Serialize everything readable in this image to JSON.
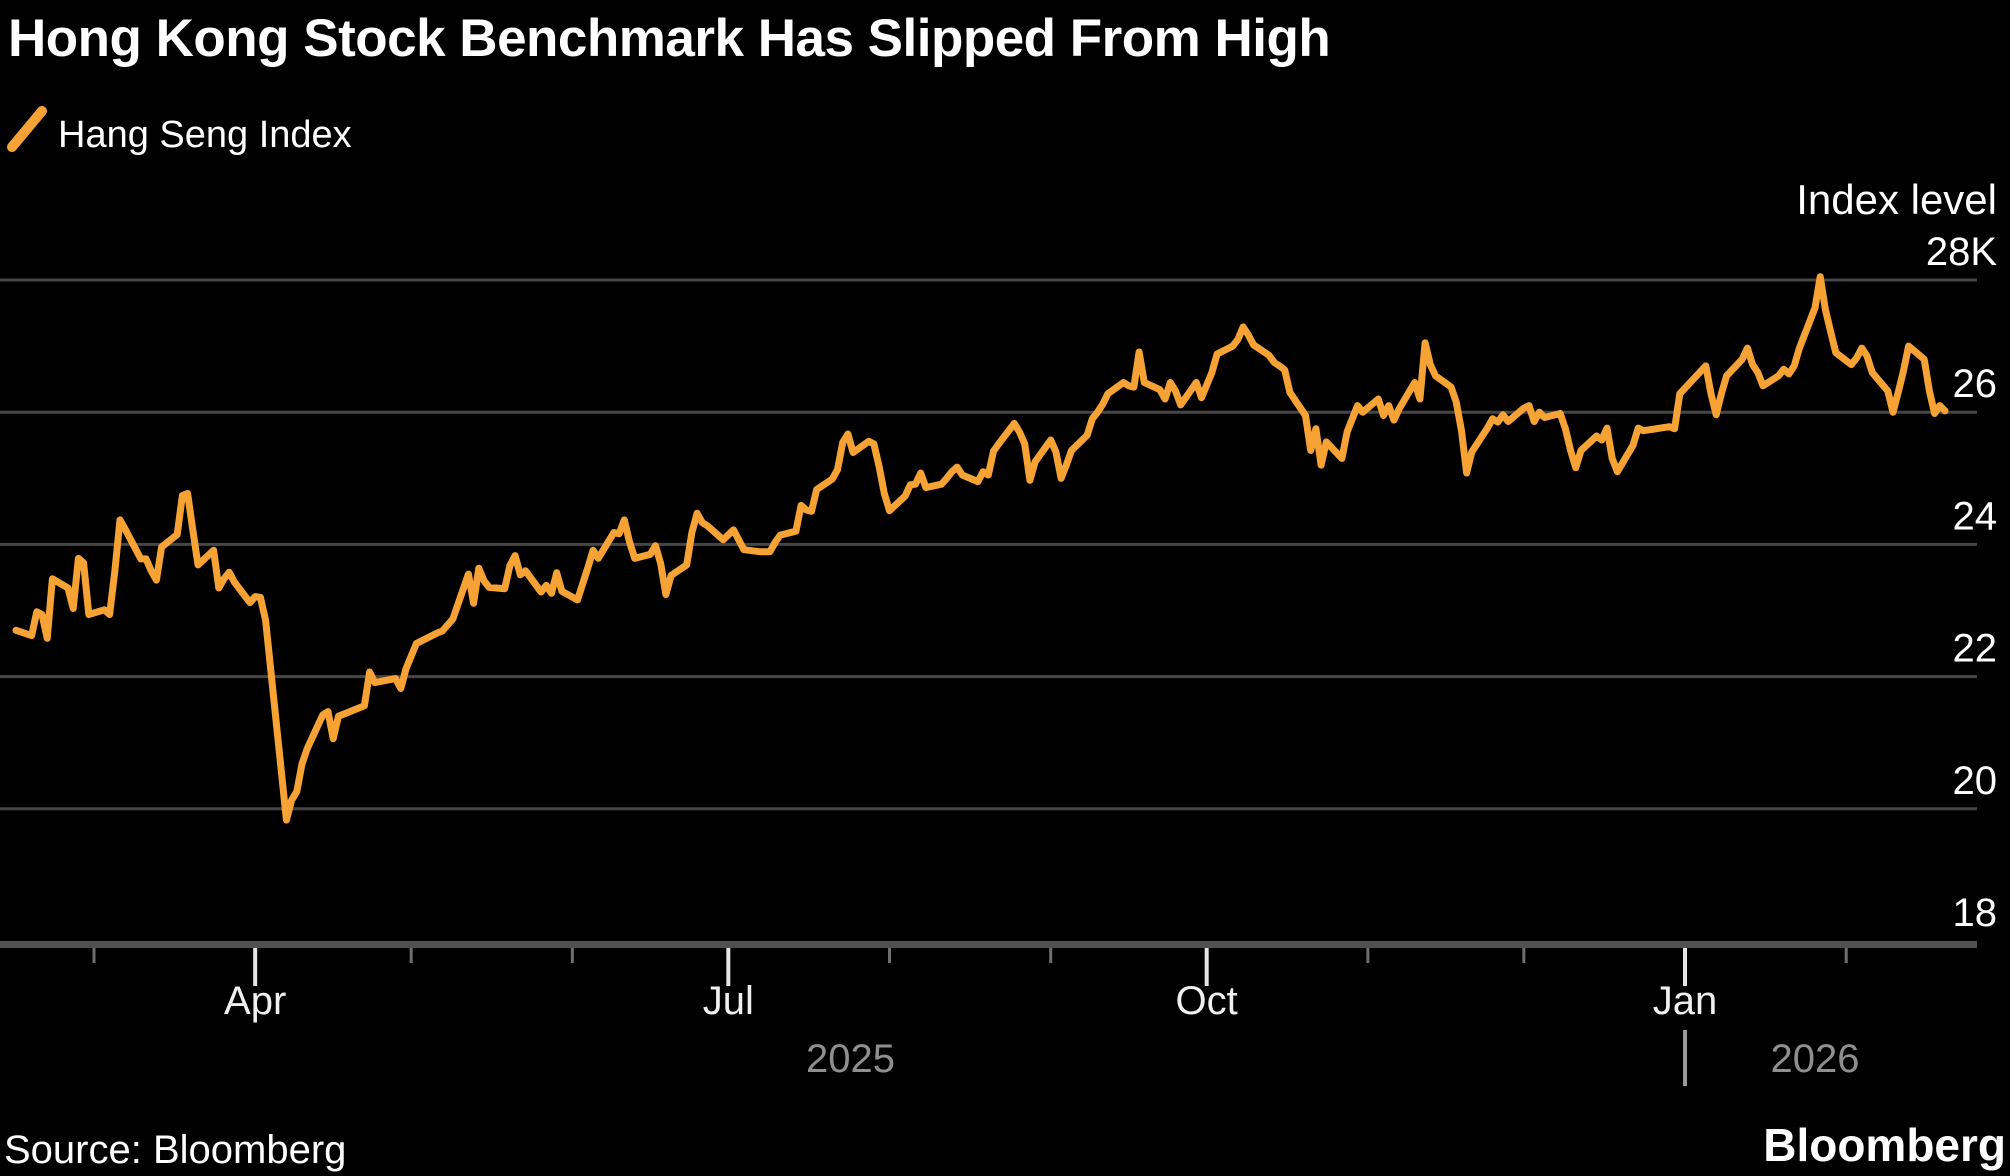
{
  "header": {
    "title": "Hong Kong Stock Benchmark Has Slipped From High",
    "legend": {
      "label": "Hang Seng Index"
    }
  },
  "footer": {
    "source": "Source: Bloomberg",
    "logo": "Bloomberg"
  },
  "colors": {
    "background": "#000000",
    "line": "#F6A235",
    "grid": "#464646",
    "axis_bar": "#505050",
    "minor_tick": "#6E6E6E",
    "major_tick": "#E6E6E6",
    "text_primary": "#FFFFFF",
    "text_month": "#F0F0F0",
    "text_year": "#8F8F8F",
    "year_divider": "#9A9A9A"
  },
  "chart_data": {
    "type": "line",
    "title": "Hong Kong Stock Benchmark Has Slipped From High",
    "series_name": "Hang Seng Index",
    "ylabel": "Index level",
    "y_unit": "thousands of index points (K)",
    "ylim": [
      18,
      28
    ],
    "grid": true,
    "legend_position": "top-left",
    "y_ticks": [
      {
        "value": 28,
        "label": "28K"
      },
      {
        "value": 26,
        "label": "26"
      },
      {
        "value": 24,
        "label": "24"
      },
      {
        "value": 22,
        "label": "22"
      },
      {
        "value": 20,
        "label": "20"
      },
      {
        "value": 18,
        "label": "18"
      }
    ],
    "x_ticks_minor": [
      "2025-03-01",
      "2025-05-01",
      "2025-06-01",
      "2025-08-01",
      "2025-09-01",
      "2025-11-01",
      "2025-12-01",
      "2026-02-01"
    ],
    "x_ticks_major": [
      {
        "label": "Apr",
        "date": "2025-04-01"
      },
      {
        "label": "Jul",
        "date": "2025-07-01"
      },
      {
        "label": "Oct",
        "date": "2025-10-01"
      },
      {
        "label": "Jan",
        "date": "2026-01-01"
      }
    ],
    "year_labels": [
      {
        "label": "2025",
        "span": [
          "2025-02-14",
          "2026-01-01"
        ]
      },
      {
        "label": "2026",
        "span": [
          "2026-01-01",
          "2026-02-20"
        ]
      }
    ],
    "year_divider": {
      "glyph": "|",
      "date": "2026-01-01"
    },
    "x_range": [
      "2025-02-14",
      "2026-02-20"
    ],
    "points": [
      [
        "2025-02-14",
        22.7
      ],
      [
        "2025-02-17",
        22.62
      ],
      [
        "2025-02-18",
        22.98
      ],
      [
        "2025-02-19",
        22.94
      ],
      [
        "2025-02-20",
        22.58
      ],
      [
        "2025-02-21",
        23.48
      ],
      [
        "2025-02-24",
        23.34
      ],
      [
        "2025-02-25",
        23.03
      ],
      [
        "2025-02-26",
        23.79
      ],
      [
        "2025-02-27",
        23.72
      ],
      [
        "2025-02-28",
        22.94
      ],
      [
        "2025-03-03",
        23.01
      ],
      [
        "2025-03-04",
        22.94
      ],
      [
        "2025-03-05",
        23.59
      ],
      [
        "2025-03-06",
        24.37
      ],
      [
        "2025-03-07",
        24.23
      ],
      [
        "2025-03-10",
        23.78
      ],
      [
        "2025-03-11",
        23.78
      ],
      [
        "2025-03-12",
        23.6
      ],
      [
        "2025-03-13",
        23.46
      ],
      [
        "2025-03-14",
        23.96
      ],
      [
        "2025-03-17",
        24.15
      ],
      [
        "2025-03-18",
        24.74
      ],
      [
        "2025-03-19",
        24.77
      ],
      [
        "2025-03-20",
        24.22
      ],
      [
        "2025-03-21",
        23.69
      ],
      [
        "2025-03-24",
        23.91
      ],
      [
        "2025-03-25",
        23.34
      ],
      [
        "2025-03-26",
        23.48
      ],
      [
        "2025-03-27",
        23.58
      ],
      [
        "2025-03-28",
        23.43
      ],
      [
        "2025-03-31",
        23.12
      ],
      [
        "2025-04-01",
        23.21
      ],
      [
        "2025-04-02",
        23.2
      ],
      [
        "2025-04-03",
        22.85
      ],
      [
        "2025-04-07",
        19.83
      ],
      [
        "2025-04-08",
        20.13
      ],
      [
        "2025-04-09",
        20.26
      ],
      [
        "2025-04-10",
        20.68
      ],
      [
        "2025-04-11",
        20.91
      ],
      [
        "2025-04-14",
        21.42
      ],
      [
        "2025-04-15",
        21.47
      ],
      [
        "2025-04-16",
        21.06
      ],
      [
        "2025-04-17",
        21.4
      ],
      [
        "2025-04-22",
        21.56
      ],
      [
        "2025-04-23",
        22.07
      ],
      [
        "2025-04-24",
        21.91
      ],
      [
        "2025-04-28",
        21.97
      ],
      [
        "2025-04-29",
        21.82
      ],
      [
        "2025-04-30",
        22.12
      ],
      [
        "2025-05-02",
        22.5
      ],
      [
        "2025-05-06",
        22.66
      ],
      [
        "2025-05-07",
        22.69
      ],
      [
        "2025-05-08",
        22.78
      ],
      [
        "2025-05-09",
        22.87
      ],
      [
        "2025-05-12",
        23.55
      ],
      [
        "2025-05-13",
        23.11
      ],
      [
        "2025-05-14",
        23.64
      ],
      [
        "2025-05-15",
        23.45
      ],
      [
        "2025-05-16",
        23.35
      ],
      [
        "2025-05-19",
        23.33
      ],
      [
        "2025-05-20",
        23.68
      ],
      [
        "2025-05-21",
        23.83
      ],
      [
        "2025-05-22",
        23.54
      ],
      [
        "2025-05-23",
        23.6
      ],
      [
        "2025-05-26",
        23.28
      ],
      [
        "2025-05-27",
        23.38
      ],
      [
        "2025-05-28",
        23.26
      ],
      [
        "2025-05-29",
        23.57
      ],
      [
        "2025-05-30",
        23.29
      ],
      [
        "2025-06-02",
        23.16
      ],
      [
        "2025-06-04",
        23.65
      ],
      [
        "2025-06-05",
        23.91
      ],
      [
        "2025-06-06",
        23.79
      ],
      [
        "2025-06-09",
        24.18
      ],
      [
        "2025-06-10",
        24.16
      ],
      [
        "2025-06-11",
        24.37
      ],
      [
        "2025-06-12",
        24.04
      ],
      [
        "2025-06-13",
        23.79
      ],
      [
        "2025-06-16",
        23.85
      ],
      [
        "2025-06-17",
        23.98
      ],
      [
        "2025-06-18",
        23.71
      ],
      [
        "2025-06-19",
        23.24
      ],
      [
        "2025-06-20",
        23.53
      ],
      [
        "2025-06-23",
        23.69
      ],
      [
        "2025-06-24",
        24.18
      ],
      [
        "2025-06-25",
        24.47
      ],
      [
        "2025-06-26",
        24.33
      ],
      [
        "2025-06-27",
        24.28
      ],
      [
        "2025-06-30",
        24.07
      ],
      [
        "2025-07-02",
        24.22
      ],
      [
        "2025-07-04",
        23.92
      ],
      [
        "2025-07-07",
        23.89
      ],
      [
        "2025-07-09",
        23.89
      ],
      [
        "2025-07-10",
        24.03
      ],
      [
        "2025-07-11",
        24.14
      ],
      [
        "2025-07-14",
        24.2
      ],
      [
        "2025-07-15",
        24.59
      ],
      [
        "2025-07-16",
        24.52
      ],
      [
        "2025-07-17",
        24.5
      ],
      [
        "2025-07-18",
        24.83
      ],
      [
        "2025-07-21",
        24.99
      ],
      [
        "2025-07-22",
        25.13
      ],
      [
        "2025-07-23",
        25.54
      ],
      [
        "2025-07-24",
        25.67
      ],
      [
        "2025-07-25",
        25.39
      ],
      [
        "2025-07-28",
        25.56
      ],
      [
        "2025-07-29",
        25.52
      ],
      [
        "2025-07-30",
        25.18
      ],
      [
        "2025-07-31",
        24.77
      ],
      [
        "2025-08-01",
        24.51
      ],
      [
        "2025-08-04",
        24.73
      ],
      [
        "2025-08-05",
        24.9
      ],
      [
        "2025-08-06",
        24.91
      ],
      [
        "2025-08-07",
        25.08
      ],
      [
        "2025-08-08",
        24.86
      ],
      [
        "2025-08-11",
        24.91
      ],
      [
        "2025-08-12",
        25.0
      ],
      [
        "2025-08-13",
        25.1
      ],
      [
        "2025-08-14",
        25.17
      ],
      [
        "2025-08-15",
        25.05
      ],
      [
        "2025-08-18",
        24.95
      ],
      [
        "2025-08-19",
        25.1
      ],
      [
        "2025-08-20",
        25.05
      ],
      [
        "2025-08-21",
        25.41
      ],
      [
        "2025-08-22",
        25.52
      ],
      [
        "2025-08-25",
        25.83
      ],
      [
        "2025-08-26",
        25.7
      ],
      [
        "2025-08-27",
        25.52
      ],
      [
        "2025-08-28",
        24.97
      ],
      [
        "2025-08-29",
        25.25
      ],
      [
        "2025-09-01",
        25.58
      ],
      [
        "2025-09-02",
        25.4
      ],
      [
        "2025-09-03",
        25.0
      ],
      [
        "2025-09-04",
        25.2
      ],
      [
        "2025-09-05",
        25.42
      ],
      [
        "2025-09-08",
        25.65
      ],
      [
        "2025-09-09",
        25.9
      ],
      [
        "2025-09-10",
        26.0
      ],
      [
        "2025-09-11",
        26.12
      ],
      [
        "2025-09-12",
        26.28
      ],
      [
        "2025-09-15",
        26.45
      ],
      [
        "2025-09-16",
        26.4
      ],
      [
        "2025-09-17",
        26.38
      ],
      [
        "2025-09-18",
        26.91
      ],
      [
        "2025-09-19",
        26.45
      ],
      [
        "2025-09-22",
        26.34
      ],
      [
        "2025-09-23",
        26.2
      ],
      [
        "2025-09-24",
        26.45
      ],
      [
        "2025-09-25",
        26.32
      ],
      [
        "2025-09-26",
        26.11
      ],
      [
        "2025-09-29",
        26.45
      ],
      [
        "2025-09-30",
        26.22
      ],
      [
        "2025-10-02",
        26.6
      ],
      [
        "2025-10-03",
        26.88
      ],
      [
        "2025-10-06",
        27.0
      ],
      [
        "2025-10-07",
        27.1
      ],
      [
        "2025-10-08",
        27.29
      ],
      [
        "2025-10-09",
        27.17
      ],
      [
        "2025-10-10",
        27.02
      ],
      [
        "2025-10-13",
        26.86
      ],
      [
        "2025-10-14",
        26.75
      ],
      [
        "2025-10-15",
        26.7
      ],
      [
        "2025-10-16",
        26.64
      ],
      [
        "2025-10-17",
        26.3
      ],
      [
        "2025-10-20",
        25.95
      ],
      [
        "2025-10-21",
        25.42
      ],
      [
        "2025-10-22",
        25.75
      ],
      [
        "2025-10-23",
        25.2
      ],
      [
        "2025-10-24",
        25.55
      ],
      [
        "2025-10-27",
        25.3
      ],
      [
        "2025-10-28",
        25.7
      ],
      [
        "2025-10-29",
        25.9
      ],
      [
        "2025-10-30",
        26.1
      ],
      [
        "2025-10-31",
        26.0
      ],
      [
        "2025-11-03",
        26.2
      ],
      [
        "2025-11-04",
        25.95
      ],
      [
        "2025-11-05",
        26.1
      ],
      [
        "2025-11-06",
        25.88
      ],
      [
        "2025-11-07",
        26.05
      ],
      [
        "2025-11-10",
        26.45
      ],
      [
        "2025-11-11",
        26.2
      ],
      [
        "2025-11-12",
        27.05
      ],
      [
        "2025-11-13",
        26.72
      ],
      [
        "2025-11-14",
        26.55
      ],
      [
        "2025-11-17",
        26.38
      ],
      [
        "2025-11-18",
        26.15
      ],
      [
        "2025-11-19",
        25.72
      ],
      [
        "2025-11-20",
        25.08
      ],
      [
        "2025-11-21",
        25.4
      ],
      [
        "2025-11-24",
        25.76
      ],
      [
        "2025-11-25",
        25.9
      ],
      [
        "2025-11-26",
        25.85
      ],
      [
        "2025-11-27",
        25.96
      ],
      [
        "2025-11-28",
        25.86
      ],
      [
        "2025-12-01",
        26.06
      ],
      [
        "2025-12-02",
        26.1
      ],
      [
        "2025-12-03",
        25.86
      ],
      [
        "2025-12-04",
        26.0
      ],
      [
        "2025-12-05",
        25.92
      ],
      [
        "2025-12-08",
        25.98
      ],
      [
        "2025-12-09",
        25.75
      ],
      [
        "2025-12-10",
        25.42
      ],
      [
        "2025-12-11",
        25.16
      ],
      [
        "2025-12-12",
        25.42
      ],
      [
        "2025-12-15",
        25.64
      ],
      [
        "2025-12-16",
        25.58
      ],
      [
        "2025-12-17",
        25.76
      ],
      [
        "2025-12-18",
        25.3
      ],
      [
        "2025-12-19",
        25.1
      ],
      [
        "2025-12-22",
        25.5
      ],
      [
        "2025-12-23",
        25.76
      ],
      [
        "2025-12-24",
        25.72
      ],
      [
        "2025-12-29",
        25.78
      ],
      [
        "2025-12-30",
        25.75
      ],
      [
        "2025-12-31",
        26.28
      ],
      [
        "2026-01-02",
        26.45
      ],
      [
        "2026-01-05",
        26.7
      ],
      [
        "2026-01-06",
        26.28
      ],
      [
        "2026-01-07",
        25.96
      ],
      [
        "2026-01-08",
        26.28
      ],
      [
        "2026-01-09",
        26.55
      ],
      [
        "2026-01-12",
        26.8
      ],
      [
        "2026-01-13",
        26.97
      ],
      [
        "2026-01-14",
        26.72
      ],
      [
        "2026-01-15",
        26.6
      ],
      [
        "2026-01-16",
        26.4
      ],
      [
        "2026-01-19",
        26.55
      ],
      [
        "2026-01-20",
        26.65
      ],
      [
        "2026-01-21",
        26.58
      ],
      [
        "2026-01-22",
        26.7
      ],
      [
        "2026-01-23",
        26.97
      ],
      [
        "2026-01-26",
        27.58
      ],
      [
        "2026-01-27",
        28.05
      ],
      [
        "2026-01-28",
        27.55
      ],
      [
        "2026-01-29",
        27.22
      ],
      [
        "2026-01-30",
        26.9
      ],
      [
        "2026-02-02",
        26.72
      ],
      [
        "2026-02-03",
        26.82
      ],
      [
        "2026-02-04",
        26.97
      ],
      [
        "2026-02-05",
        26.85
      ],
      [
        "2026-02-06",
        26.6
      ],
      [
        "2026-02-09",
        26.32
      ],
      [
        "2026-02-10",
        26.0
      ],
      [
        "2026-02-11",
        26.3
      ],
      [
        "2026-02-12",
        26.62
      ],
      [
        "2026-02-13",
        27.0
      ],
      [
        "2026-02-16",
        26.8
      ],
      [
        "2026-02-17",
        26.32
      ],
      [
        "2026-02-18",
        25.98
      ],
      [
        "2026-02-19",
        26.1
      ],
      [
        "2026-02-20",
        26.02
      ]
    ]
  }
}
